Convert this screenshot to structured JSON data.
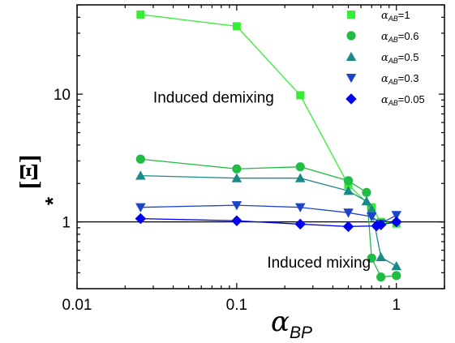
{
  "chart_data": {
    "type": "scatter",
    "xlabel": {
      "symbol": "α",
      "subscript": "BP"
    },
    "ylabel": {
      "symbol": "[Ξ]",
      "superscript": "*"
    },
    "xscale": "log",
    "yscale": "log",
    "xlim": [
      0.01,
      2
    ],
    "ylim": [
      0.3,
      50
    ],
    "x_ticks": [
      {
        "value": 0.01,
        "label": "0.01"
      },
      {
        "value": 0.1,
        "label": "0.1"
      },
      {
        "value": 1,
        "label": "1"
      }
    ],
    "y_ticks": [
      {
        "value": 1,
        "label": "1"
      },
      {
        "value": 10,
        "label": "10"
      }
    ],
    "reference_line": {
      "y": 1,
      "color": "#000000"
    },
    "annotations": [
      {
        "text": "Induced demixing",
        "x": 0.03,
        "y": 8.6
      },
      {
        "text": "Induced mixing",
        "x": 0.155,
        "y": 0.44
      }
    ],
    "legend": {
      "position": "top-right",
      "symbol": "α",
      "subscript": "AB"
    },
    "series": [
      {
        "name": "=1",
        "marker": "square",
        "color": "#33ee33",
        "x": [
          0.025,
          0.1,
          0.25,
          0.5,
          0.7,
          0.8,
          1.0
        ],
        "y": [
          42,
          34,
          9.8,
          1.95,
          1.3,
          1.0,
          0.97
        ]
      },
      {
        "name": "=0.6",
        "marker": "circle",
        "color": "#22bb44",
        "x": [
          0.025,
          0.1,
          0.25,
          0.5,
          0.65,
          0.7,
          0.8,
          1.0
        ],
        "y": [
          3.1,
          2.6,
          2.7,
          2.1,
          1.7,
          0.52,
          0.37,
          0.38
        ]
      },
      {
        "name": "=0.5",
        "marker": "triangle-up",
        "color": "#1a8a88",
        "x": [
          0.025,
          0.1,
          0.25,
          0.5,
          0.65,
          0.7,
          0.8,
          1.0
        ],
        "y": [
          2.3,
          2.2,
          2.2,
          1.75,
          1.45,
          1.25,
          0.53,
          0.45
        ]
      },
      {
        "name": "=0.3",
        "marker": "triangle-down",
        "color": "#1a44cc",
        "x": [
          0.025,
          0.1,
          0.25,
          0.5,
          0.7,
          0.8,
          1.0
        ],
        "y": [
          1.3,
          1.35,
          1.3,
          1.18,
          1.1,
          0.97,
          1.13
        ]
      },
      {
        "name": "=0.05",
        "marker": "diamond",
        "color": "#0000ee",
        "x": [
          0.025,
          0.1,
          0.25,
          0.5,
          0.75,
          0.8,
          1.0
        ],
        "y": [
          1.06,
          1.02,
          0.96,
          0.92,
          0.93,
          0.95,
          1.0
        ]
      }
    ]
  }
}
